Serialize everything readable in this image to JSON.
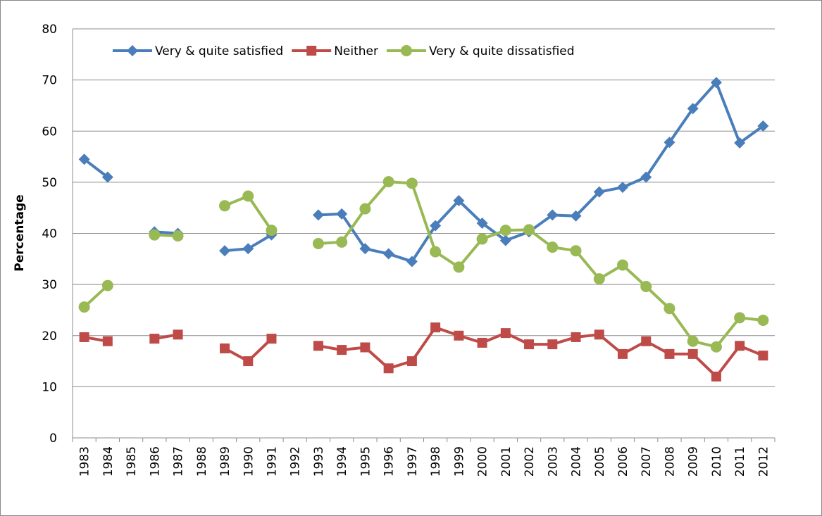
{
  "chart_data": {
    "type": "line",
    "y_label": "Percentage",
    "categories": [
      "1983",
      "1984",
      "1985",
      "1986",
      "1987",
      "1988",
      "1989",
      "1990",
      "1991",
      "1992",
      "1993",
      "1994",
      "1995",
      "1996",
      "1997",
      "1998",
      "1999",
      "2000",
      "2001",
      "2002",
      "2003",
      "2004",
      "2005",
      "2006",
      "2007",
      "2008",
      "2009",
      "2010",
      "2011",
      "2012"
    ],
    "series": [
      {
        "name": "Very & quite satisfied",
        "color": "#4a7ebb",
        "marker": "diamond",
        "values": [
          54.5,
          51,
          null,
          40.3,
          40,
          null,
          36.6,
          37,
          39.7,
          null,
          43.6,
          43.8,
          37,
          36,
          34.5,
          41.5,
          46.4,
          42,
          38.6,
          40.3,
          43.6,
          43.4,
          48.1,
          49,
          51,
          57.8,
          64.4,
          69.5,
          57.7,
          61
        ]
      },
      {
        "name": "Neither",
        "color": "#be4b48",
        "marker": "square",
        "values": [
          19.7,
          18.9,
          null,
          19.4,
          20.2,
          null,
          17.5,
          15,
          19.4,
          null,
          18,
          17.2,
          17.7,
          13.6,
          15,
          21.6,
          20,
          18.6,
          20.5,
          18.3,
          18.3,
          19.7,
          20.2,
          16.4,
          18.9,
          16.4,
          16.4,
          12,
          18,
          16.1
        ]
      },
      {
        "name": "Very & quite dissatisfied",
        "color": "#98b954",
        "marker": "circle",
        "values": [
          25.6,
          29.8,
          null,
          39.7,
          39.5,
          null,
          45.4,
          47.3,
          40.6,
          null,
          38,
          38.3,
          44.8,
          50.1,
          49.8,
          36.4,
          33.4,
          38.9,
          40.6,
          40.7,
          37.3,
          36.6,
          31.1,
          33.8,
          29.6,
          25.3,
          18.9,
          17.8,
          23.5,
          23
        ]
      }
    ],
    "ylim": [
      0,
      80
    ],
    "yticks": [
      0,
      10,
      20,
      30,
      40,
      50,
      60,
      70,
      80
    ],
    "grid": true
  }
}
